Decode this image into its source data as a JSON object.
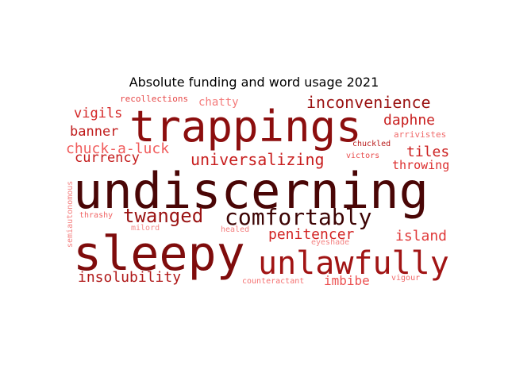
{
  "chart_data": {
    "type": "wordcloud",
    "title": "Absolute funding and word usage 2021",
    "colormap": "red",
    "words": [
      {
        "text": "undiscerning",
        "weight": 100,
        "color": "#4a0606"
      },
      {
        "text": "sleepy",
        "weight": 88,
        "color": "#7f0c0c"
      },
      {
        "text": "trappings",
        "weight": 78,
        "color": "#8c0e0e"
      },
      {
        "text": "unlawfully",
        "weight": 62,
        "color": "#a11414"
      },
      {
        "text": "comfortably",
        "weight": 50,
        "color": "#3d0404"
      },
      {
        "text": "twanged",
        "weight": 44,
        "color": "#9a1212"
      },
      {
        "text": "inconvenience",
        "weight": 34,
        "color": "#9a1010"
      },
      {
        "text": "universalizing",
        "weight": 34,
        "color": "#c81e1e"
      },
      {
        "text": "penitencer",
        "weight": 30,
        "color": "#d22424"
      },
      {
        "text": "island",
        "weight": 30,
        "color": "#e03a3a"
      },
      {
        "text": "insolubility",
        "weight": 30,
        "color": "#b01818"
      },
      {
        "text": "daphne",
        "weight": 29,
        "color": "#c81e1e"
      },
      {
        "text": "chuck-a-luck",
        "weight": 29,
        "color": "#f05b5b"
      },
      {
        "text": "tiles",
        "weight": 28,
        "color": "#cc2020"
      },
      {
        "text": "banner",
        "weight": 27,
        "color": "#c01b1b"
      },
      {
        "text": "currency",
        "weight": 27,
        "color": "#c41c1c"
      },
      {
        "text": "vigils",
        "weight": 27,
        "color": "#d42626"
      },
      {
        "text": "imbibe",
        "weight": 26,
        "color": "#ec5252"
      },
      {
        "text": "throwing",
        "weight": 25,
        "color": "#dc2e2e"
      },
      {
        "text": "chatty",
        "weight": 22,
        "color": "#f47a7a"
      },
      {
        "text": "recollections",
        "weight": 16,
        "color": "#e64848"
      },
      {
        "text": "arrivistes",
        "weight": 15,
        "color": "#f06a6a"
      },
      {
        "text": "chuckled",
        "weight": 15,
        "color": "#b81a1a"
      },
      {
        "text": "victors",
        "weight": 15,
        "color": "#e84a4a"
      },
      {
        "text": "semiautonomous",
        "weight": 14,
        "color": "#f48080"
      },
      {
        "text": "thrashy",
        "weight": 14,
        "color": "#f06464"
      },
      {
        "text": "milord",
        "weight": 14,
        "color": "#f48a8a"
      },
      {
        "text": "healed",
        "weight": 14,
        "color": "#f48080"
      },
      {
        "text": "eyeshade",
        "weight": 14,
        "color": "#f48484"
      },
      {
        "text": "counteractant",
        "weight": 14,
        "color": "#f47070"
      },
      {
        "text": "vigour",
        "weight": 14,
        "color": "#f06a6a"
      }
    ]
  }
}
